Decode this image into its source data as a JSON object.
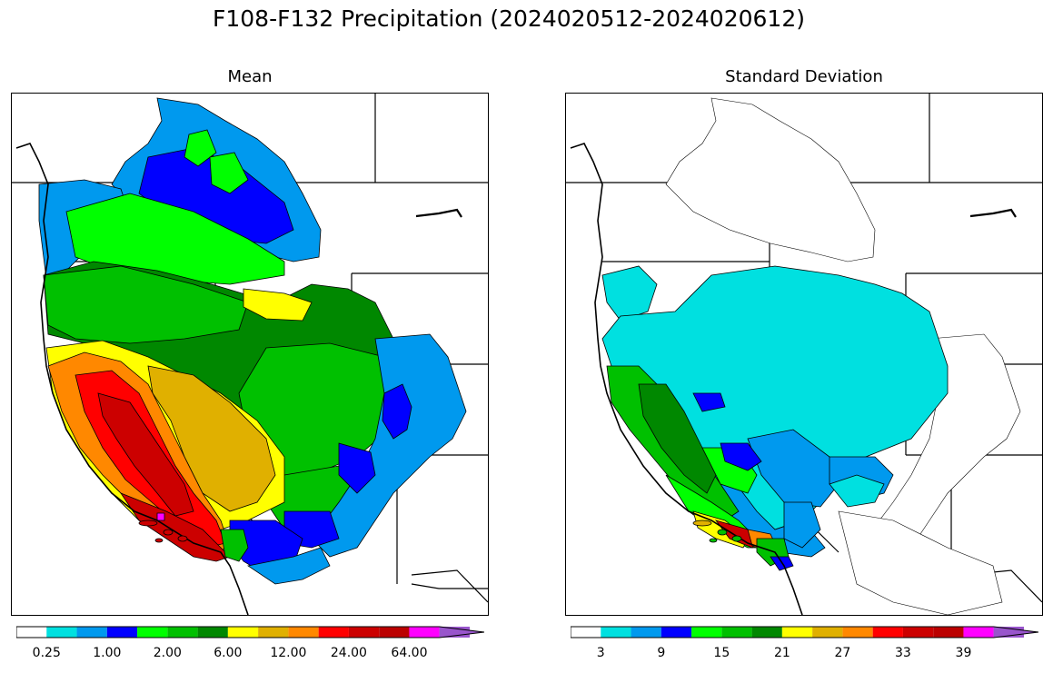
{
  "title": "F108-F132 Precipitation (2024020512-2024020612)",
  "panels": [
    {
      "title": "Mean",
      "colorbar": {
        "colors": [
          "#ffffff",
          "#00e0e0",
          "#0099ee",
          "#0000ff",
          "#00ff00",
          "#00c000",
          "#008800",
          "#ffff00",
          "#e0b000",
          "#ff8800",
          "#ff0000",
          "#cc0000",
          "#bb0000",
          "#ff00ff",
          "#9955cc"
        ],
        "tick_labels": [
          "0.25",
          "1.00",
          "2.00",
          "6.00",
          "12.00",
          "24.00",
          "64.00"
        ],
        "extend": "max"
      }
    },
    {
      "title": "Standard Deviation",
      "colorbar": {
        "colors": [
          "#ffffff",
          "#00e0e0",
          "#0099ee",
          "#0000ff",
          "#00ff00",
          "#00c000",
          "#008800",
          "#ffff00",
          "#e0b000",
          "#ff8800",
          "#ff0000",
          "#cc0000",
          "#bb0000",
          "#ff00ff",
          "#9955cc"
        ],
        "tick_labels": [
          "3",
          "9",
          "15",
          "21",
          "27",
          "33",
          "39"
        ],
        "extend": "max"
      }
    }
  ]
}
